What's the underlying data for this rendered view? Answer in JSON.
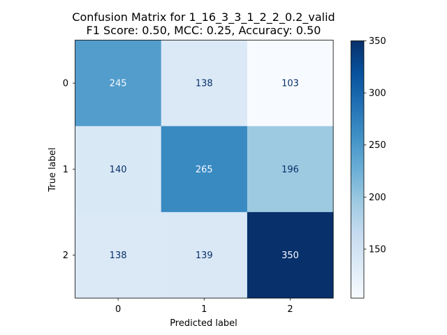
{
  "chart_data": {
    "type": "heatmap",
    "title": "Confusion Matrix for 1_16_3_3_1_2_2_0.2_valid",
    "subtitle": "F1 Score: 0.50, MCC: 0.25, Accuracy: 0.50",
    "xlabel": "Predicted label",
    "ylabel": "True label",
    "x_categories": [
      "0",
      "1",
      "2"
    ],
    "y_categories": [
      "0",
      "1",
      "2"
    ],
    "values": [
      [
        245,
        138,
        103
      ],
      [
        140,
        265,
        196
      ],
      [
        138,
        139,
        350
      ]
    ],
    "colormap": "Blues",
    "vmin": 103,
    "vmax": 350,
    "colorbar_ticks": [
      150,
      200,
      250,
      300,
      350
    ],
    "grid": false
  }
}
